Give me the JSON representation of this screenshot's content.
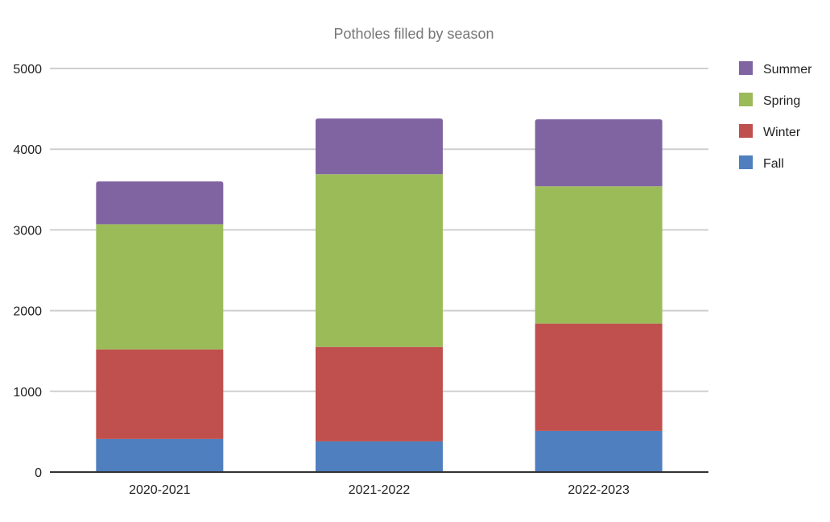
{
  "chart_data": {
    "type": "bar",
    "stacked": true,
    "title": "Potholes filled by season",
    "xlabel": "",
    "ylabel": "",
    "categories": [
      "2020-2021",
      "2021-2022",
      "2022-2023"
    ],
    "series": [
      {
        "name": "Fall",
        "color": "#4f7fbe",
        "values": [
          410,
          380,
          510
        ]
      },
      {
        "name": "Winter",
        "color": "#c0504d",
        "values": [
          1110,
          1170,
          1330
        ]
      },
      {
        "name": "Spring",
        "color": "#9bbb59",
        "values": [
          1550,
          2140,
          1700
        ]
      },
      {
        "name": "Summer",
        "color": "#8064a2",
        "values": [
          530,
          690,
          830
        ]
      }
    ],
    "ylim": [
      0,
      5000
    ],
    "yticks": [
      0,
      1000,
      2000,
      3000,
      4000,
      5000
    ],
    "grid": true,
    "legend_position": "right",
    "legend_order": [
      "Summer",
      "Spring",
      "Winter",
      "Fall"
    ]
  }
}
